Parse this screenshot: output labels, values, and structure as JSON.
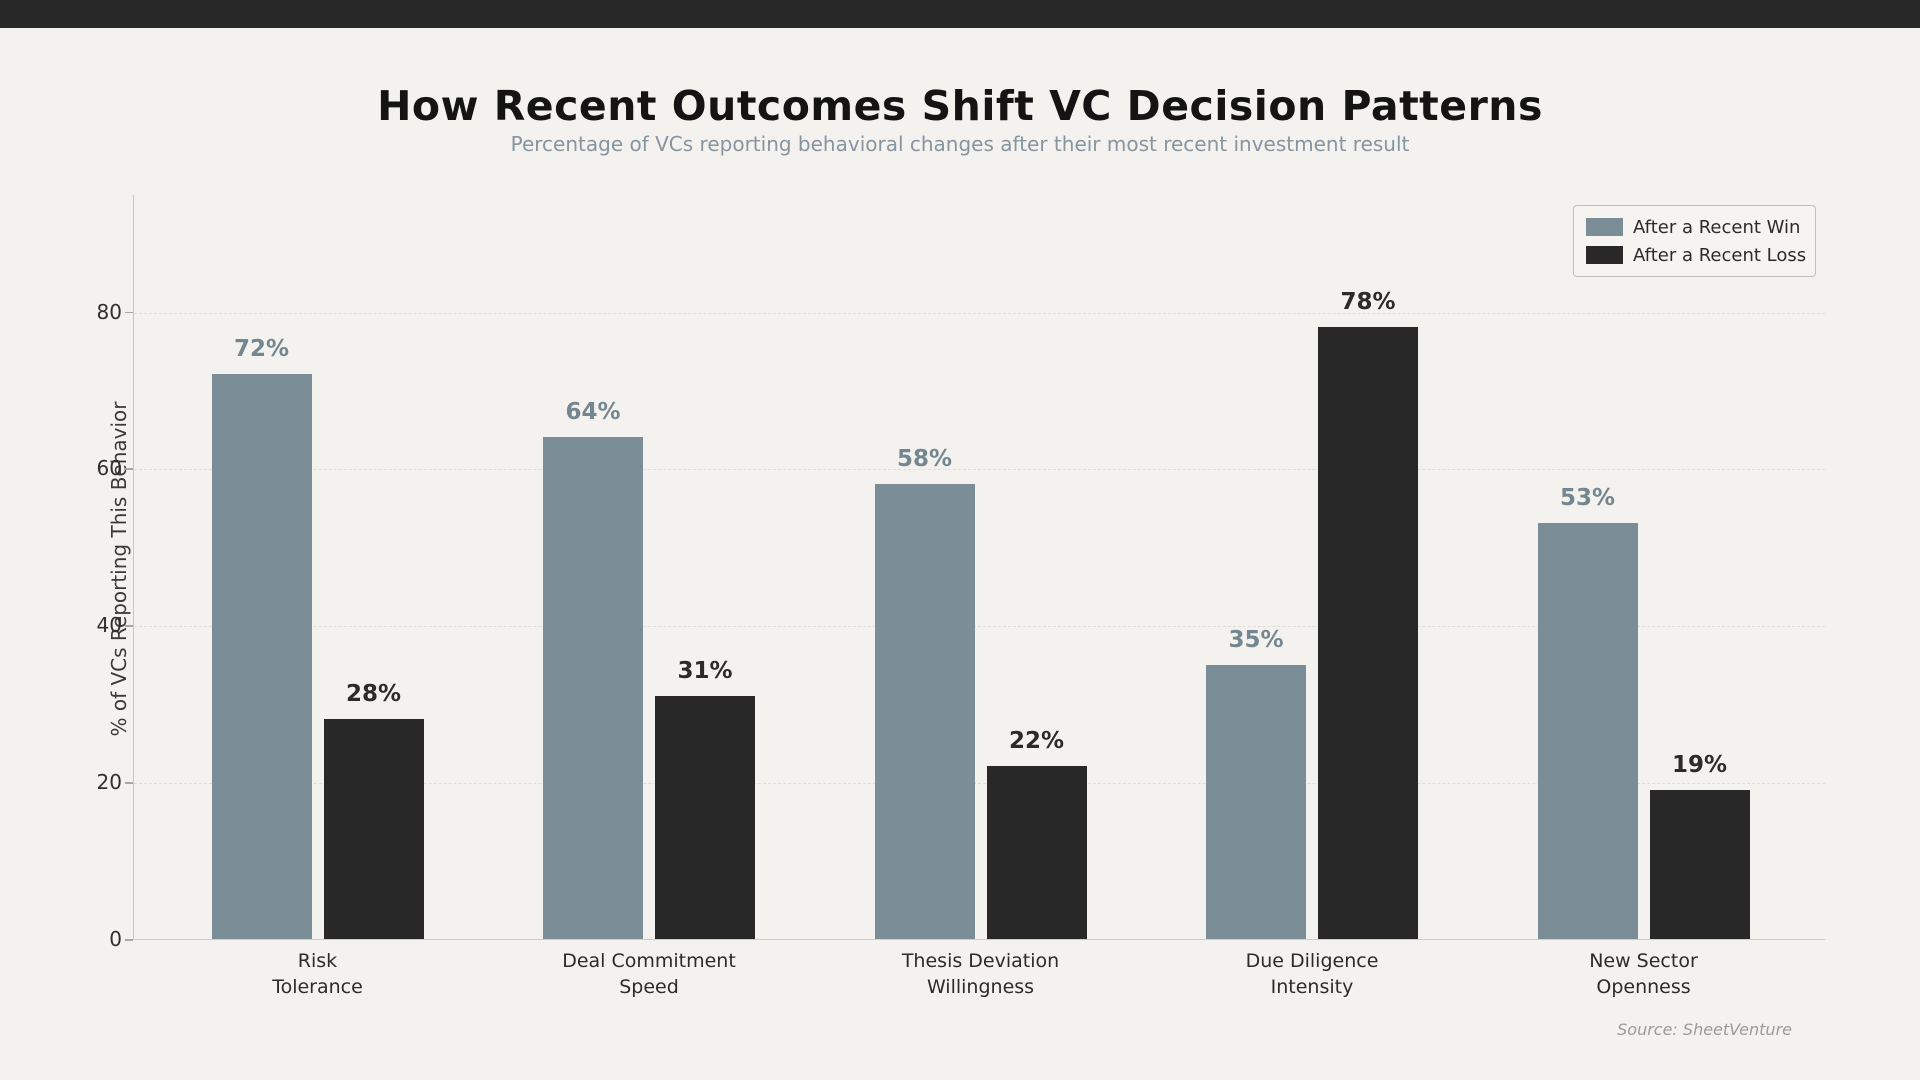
{
  "header": {
    "title": "How Recent Outcomes Shift VC Decision Patterns",
    "subtitle": "Percentage of VCs reporting behavioral changes after their most recent investment result"
  },
  "colors": {
    "background": "#f4f2ee",
    "top_bar": "#282828",
    "win": "#7b8d96",
    "loss": "#282828",
    "win_label": "#74868f",
    "loss_label": "#2b2b2b"
  },
  "legend": {
    "items": [
      {
        "label": "After a Recent Win",
        "color": "#7b8d96"
      },
      {
        "label": "After a Recent Loss",
        "color": "#282828"
      }
    ]
  },
  "source": "Source: SheetVenture",
  "chart_data": {
    "type": "bar",
    "title": "How Recent Outcomes Shift VC Decision Patterns",
    "subtitle": "Percentage of VCs reporting behavioral changes after their most recent investment result",
    "xlabel": "",
    "ylabel": "% of VCs Reporting This Behavior",
    "categories": [
      "Risk\nTolerance",
      "Deal Commitment\nSpeed",
      "Thesis Deviation\nWillingness",
      "Due Diligence\nIntensity",
      "New Sector\nOpenness"
    ],
    "series": [
      {
        "name": "After a Recent Win",
        "color": "#7b8d96",
        "label_color": "#74868f",
        "values": [
          72,
          64,
          58,
          35,
          53
        ]
      },
      {
        "name": "After a Recent Loss",
        "color": "#282828",
        "label_color": "#2b2b2b",
        "values": [
          28,
          31,
          22,
          78,
          19
        ]
      }
    ],
    "value_label_format": "{v}%",
    "yticks": [
      0,
      20,
      40,
      60,
      80
    ],
    "ylim": [
      0,
      95
    ],
    "grid": "horizontal dashed at 20/40/60/80",
    "legend_position": "upper right"
  }
}
